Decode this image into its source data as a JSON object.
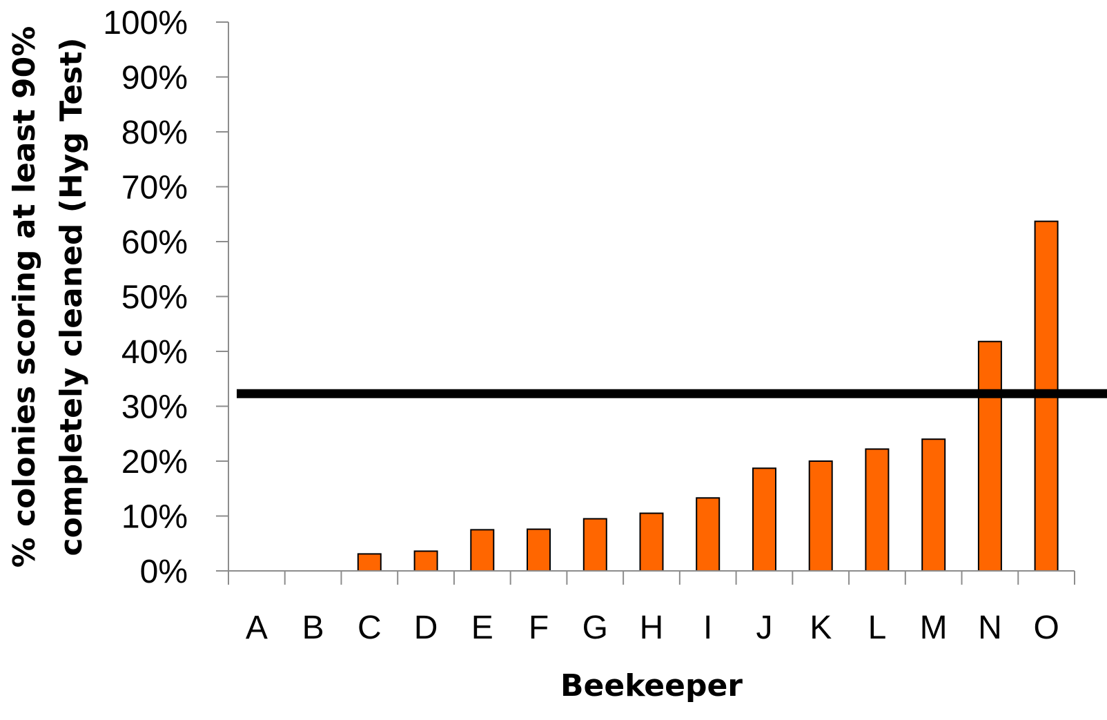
{
  "chart_data": {
    "type": "bar",
    "title": "",
    "xlabel": "Beekeeper",
    "ylabel_lines": [
      "% colonies scoring at least 90%",
      "completely cleaned (Hyg Test)"
    ],
    "categories": [
      "A",
      "B",
      "C",
      "D",
      "E",
      "F",
      "G",
      "H",
      "I",
      "J",
      "K",
      "L",
      "M",
      "N",
      "O"
    ],
    "values": [
      0,
      0,
      3.1,
      3.6,
      7.5,
      7.6,
      9.5,
      10.5,
      13.3,
      18.7,
      20.0,
      22.2,
      24.0,
      41.8,
      63.7
    ],
    "ylim": [
      0,
      100
    ],
    "yticks": [
      0,
      10,
      20,
      30,
      40,
      50,
      60,
      70,
      80,
      90,
      100
    ],
    "ytick_labels": [
      "0%",
      "10%",
      "20%",
      "30%",
      "40%",
      "50%",
      "60%",
      "70%",
      "80%",
      "90%",
      "100%"
    ],
    "reference_line": 32.3,
    "bar_color": "#ff6600",
    "grid": false,
    "legend": "none"
  }
}
